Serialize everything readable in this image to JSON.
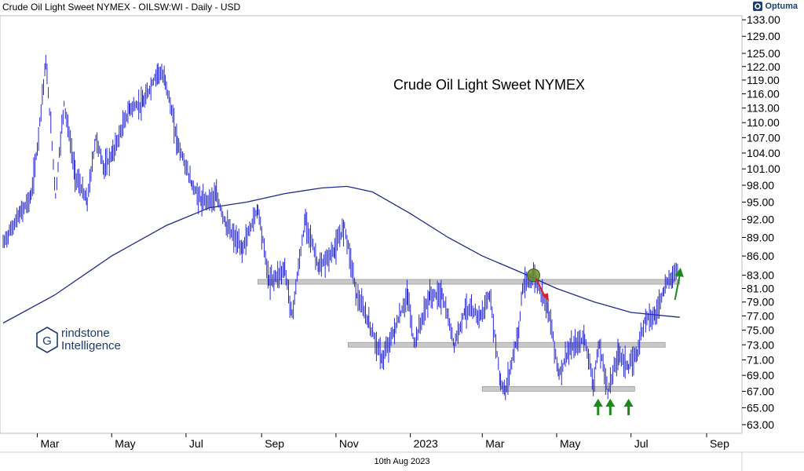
{
  "header": {
    "title": "Crude Oil Light Sweet NYMEX - OILSW:WI - Daily - USD",
    "brand": "Optuma"
  },
  "watermark": {
    "line1": "rindstone",
    "line2": "Intelligence",
    "letter": "G"
  },
  "footer": {
    "date": "10th Aug 2023"
  },
  "colors": {
    "price": "#2929d6",
    "ma": "#1e2a8c",
    "support_band": "#c9c9c9",
    "up_arrow": "#1a8a1a",
    "down_arrow": "#e02020",
    "highlight_circle": "#6b8e23",
    "brand": "#1d3f6e"
  },
  "chart_data": {
    "type": "line",
    "title": "Crude Oil Light Sweet NYMEX",
    "y_axis": {
      "side": "right",
      "ticks": [
        "133.00",
        "129.00",
        "125.00",
        "122.00",
        "119.00",
        "116.00",
        "113.00",
        "110.00",
        "107.00",
        "104.00",
        "101.00",
        "98.00",
        "95.00",
        "92.00",
        "89.00",
        "86.00",
        "83.00",
        "81.00",
        "79.00",
        "77.00",
        "75.00",
        "73.00",
        "71.00",
        "69.00",
        "67.00",
        "65.00",
        "63.00"
      ],
      "scale": "log",
      "ylim": [
        62,
        134
      ]
    },
    "x_axis": {
      "ticks": [
        "Mar",
        "May",
        "Jul",
        "Sep",
        "Nov",
        "2023",
        "Mar",
        "May",
        "Jul",
        "Sep"
      ],
      "range": [
        "2022-02-01",
        "2023-09-30"
      ]
    },
    "series": [
      {
        "type": "ohlc-line",
        "points": [
          [
            "2022-02-01",
            88
          ],
          [
            "2022-02-15",
            93
          ],
          [
            "2022-02-24",
            96
          ],
          [
            "2022-03-01",
            105
          ],
          [
            "2022-03-08",
            123
          ],
          [
            "2022-03-16",
            96
          ],
          [
            "2022-03-23",
            114
          ],
          [
            "2022-04-01",
            100
          ],
          [
            "2022-04-11",
            95
          ],
          [
            "2022-04-18",
            107
          ],
          [
            "2022-04-25",
            101
          ],
          [
            "2022-05-02",
            104
          ],
          [
            "2022-05-16",
            113
          ],
          [
            "2022-05-27",
            114
          ],
          [
            "2022-06-08",
            121
          ],
          [
            "2022-06-14",
            119
          ],
          [
            "2022-06-24",
            106
          ],
          [
            "2022-07-06",
            98
          ],
          [
            "2022-07-14",
            95
          ],
          [
            "2022-07-26",
            96
          ],
          [
            "2022-08-03",
            91
          ],
          [
            "2022-08-16",
            87
          ],
          [
            "2022-08-29",
            94
          ],
          [
            "2022-09-07",
            82
          ],
          [
            "2022-09-20",
            84
          ],
          [
            "2022-09-26",
            77
          ],
          [
            "2022-10-07",
            92
          ],
          [
            "2022-10-18",
            84
          ],
          [
            "2022-10-31",
            87
          ],
          [
            "2022-11-08",
            91
          ],
          [
            "2022-11-18",
            80
          ],
          [
            "2022-11-28",
            76
          ],
          [
            "2022-12-09",
            71
          ],
          [
            "2022-12-19",
            75
          ],
          [
            "2022-12-30",
            80
          ],
          [
            "2023-01-04",
            73
          ],
          [
            "2023-01-17",
            80
          ],
          [
            "2023-01-27",
            80
          ],
          [
            "2023-02-06",
            73
          ],
          [
            "2023-02-15",
            78
          ],
          [
            "2023-02-28",
            77
          ],
          [
            "2023-03-07",
            80
          ],
          [
            "2023-03-16",
            68
          ],
          [
            "2023-03-20",
            67
          ],
          [
            "2023-03-31",
            75
          ],
          [
            "2023-04-03",
            81
          ],
          [
            "2023-04-12",
            83
          ],
          [
            "2023-04-24",
            78
          ],
          [
            "2023-05-03",
            69
          ],
          [
            "2023-05-10",
            72
          ],
          [
            "2023-05-24",
            74
          ],
          [
            "2023-05-31",
            68
          ],
          [
            "2023-06-05",
            73
          ],
          [
            "2023-06-12",
            67
          ],
          [
            "2023-06-21",
            72
          ],
          [
            "2023-06-29",
            70
          ],
          [
            "2023-07-06",
            72
          ],
          [
            "2023-07-13",
            77
          ],
          [
            "2023-07-21",
            77
          ],
          [
            "2023-07-28",
            81
          ],
          [
            "2023-08-04",
            83
          ],
          [
            "2023-08-09",
            84
          ]
        ]
      },
      {
        "type": "moving-average",
        "points": [
          [
            "2022-02-01",
            76
          ],
          [
            "2022-03-15",
            80
          ],
          [
            "2022-05-01",
            86
          ],
          [
            "2022-06-15",
            91
          ],
          [
            "2022-07-20",
            94
          ],
          [
            "2022-08-20",
            95
          ],
          [
            "2022-09-20",
            96.5
          ],
          [
            "2022-10-20",
            97.5
          ],
          [
            "2022-11-10",
            97.8
          ],
          [
            "2022-12-01",
            96.8
          ],
          [
            "2023-01-01",
            93
          ],
          [
            "2023-02-01",
            89
          ],
          [
            "2023-03-01",
            86
          ],
          [
            "2023-04-01",
            83.5
          ],
          [
            "2023-05-01",
            81
          ],
          [
            "2023-06-01",
            79
          ],
          [
            "2023-07-01",
            77.5
          ],
          [
            "2023-08-10",
            76.8
          ]
        ]
      }
    ],
    "support_bands": [
      {
        "value": 82,
        "from": "2022-08-29",
        "to": "2023-08-10"
      },
      {
        "value": 73,
        "from": "2022-11-11",
        "to": "2023-07-29"
      },
      {
        "value": 67.3,
        "from": "2023-03-01",
        "to": "2023-07-04"
      }
    ],
    "annotations": [
      {
        "type": "circle",
        "x": "2023-04-12",
        "y": 83
      },
      {
        "type": "arrow-down",
        "from": [
          "2023-04-14",
          82.5
        ],
        "to": [
          "2023-04-22",
          79.6
        ]
      },
      {
        "type": "arrow-up",
        "x": "2023-06-04",
        "y": 65.8
      },
      {
        "type": "arrow-up",
        "x": "2023-06-14",
        "y": 65.8
      },
      {
        "type": "arrow-up",
        "x": "2023-06-29",
        "y": 65.8
      },
      {
        "type": "arrow-up-slanted",
        "from": [
          "2023-08-06",
          79.3
        ],
        "to": [
          "2023-08-10",
          83.8
        ]
      }
    ]
  }
}
